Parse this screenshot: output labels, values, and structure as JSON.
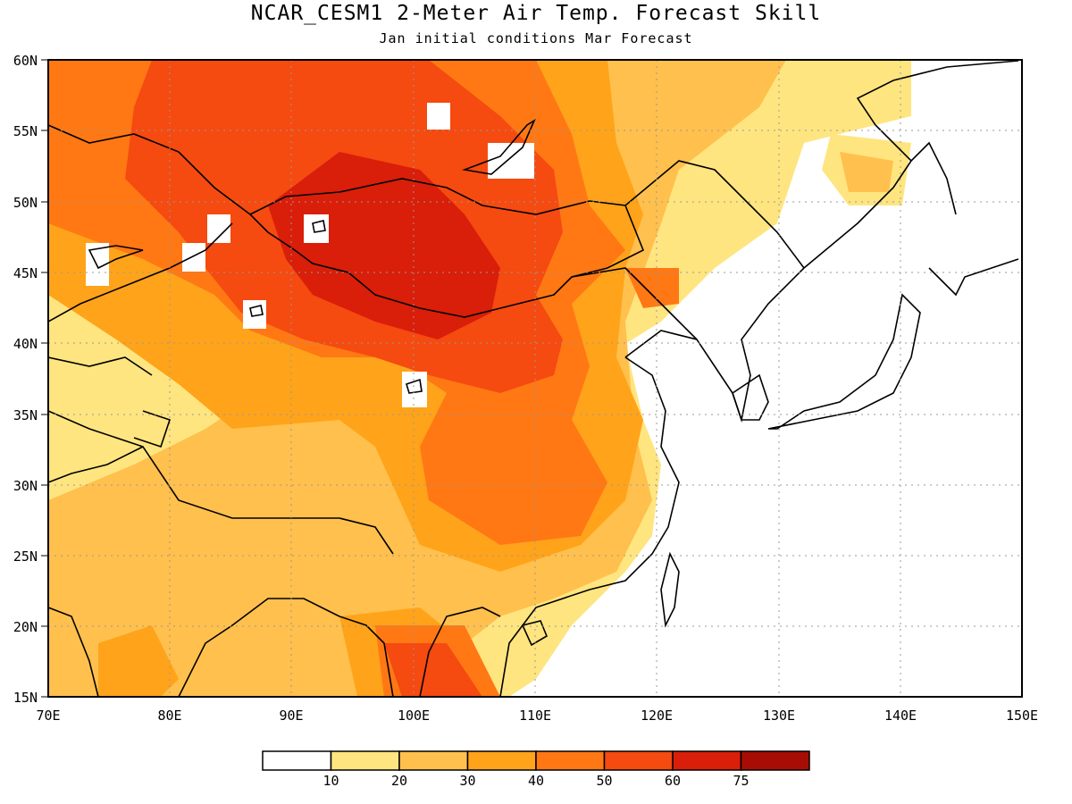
{
  "title": "NCAR_CESM1 2-Meter Air Temp. Forecast Skill",
  "subtitle": "Jan initial conditions  Mar Forecast",
  "lat_labels": [
    "60N",
    "55N",
    "50N",
    "45N",
    "40N",
    "35N",
    "30N",
    "25N",
    "20N",
    "15N"
  ],
  "lon_labels": [
    "70E",
    "80E",
    "90E",
    "100E",
    "110E",
    "120E",
    "130E",
    "140E",
    "150E"
  ],
  "colorbar": {
    "labels": [
      "10",
      "20",
      "30",
      "40",
      "50",
      "60",
      "75"
    ],
    "colors": [
      "#ffffff",
      "#ffe580",
      "#ffc04d",
      "#ffa31a",
      "#ff7814",
      "#f54a10",
      "#d91e0a",
      "#a80d05"
    ]
  },
  "colors": {
    "land_line": "#000000",
    "grid": "#999999"
  }
}
